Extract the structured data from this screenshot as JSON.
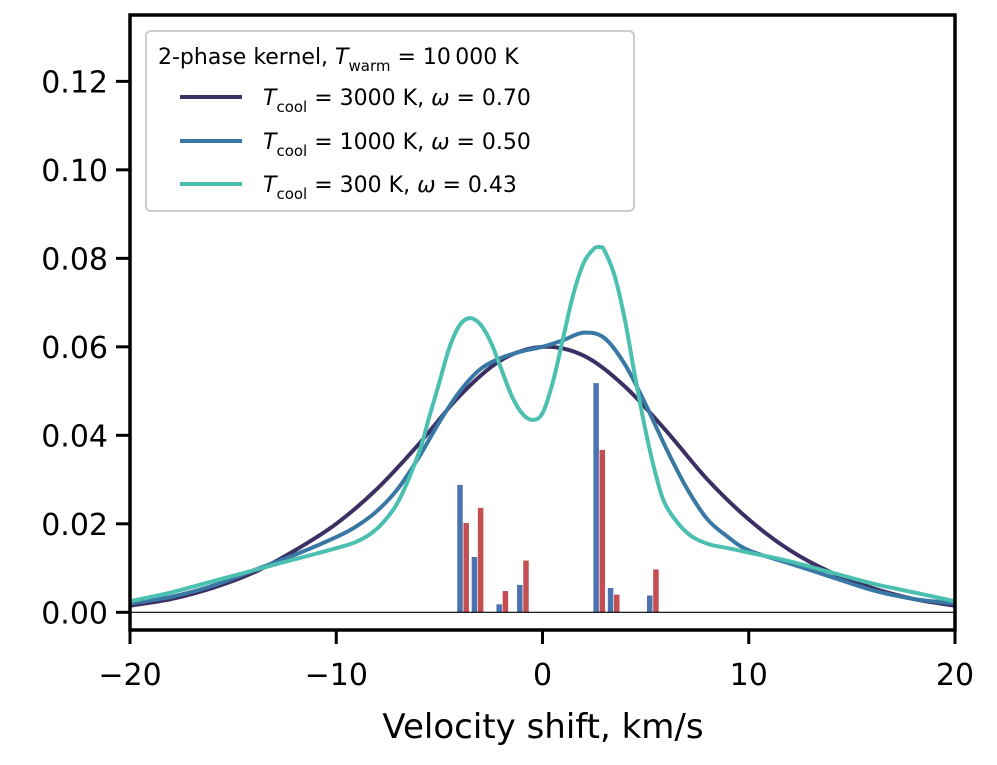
{
  "chart_data": {
    "type": "line",
    "xlabel": "Velocity shift, km/s",
    "ylabel": "",
    "xlim": [
      -20,
      20
    ],
    "ylim": [
      -0.004,
      0.135
    ],
    "x_ticks": [
      -20,
      -10,
      0,
      10,
      20
    ],
    "x_tick_labels": [
      "−20",
      "−10",
      "0",
      "10",
      "20"
    ],
    "y_ticks": [
      0.0,
      0.02,
      0.04,
      0.06,
      0.08,
      0.1,
      0.12
    ],
    "y_tick_labels": [
      "0.00",
      "0.02",
      "0.04",
      "0.06",
      "0.08",
      "0.10",
      "0.12"
    ],
    "grid": false,
    "legend": {
      "placement": "top-left",
      "title": {
        "prefix": "2-phase kernel, ",
        "var": "T",
        "sub": "warm",
        "rest": " = 10 000 K"
      },
      "entries": [
        {
          "var": "T",
          "sub": "cool",
          "rest": " = 3000 K, ",
          "omega": "ω",
          "omega_rest": " = 0.70"
        },
        {
          "var": "T",
          "sub": "cool",
          "rest": " = 1000 K, ",
          "omega": "ω",
          "omega_rest": " = 0.50"
        },
        {
          "var": "T",
          "sub": "cool",
          "rest": " = 300 K, ",
          "omega": "ω",
          "omega_rest": " = 0.43"
        }
      ]
    },
    "series": [
      {
        "name": "Tcool = 3000 K, ω = 0.70",
        "color": "#3b2f63",
        "x": [
          -20,
          -18,
          -16,
          -14,
          -12,
          -10,
          -8,
          -6,
          -4,
          -2,
          0,
          2,
          4,
          6,
          8,
          10,
          12,
          14,
          16,
          18,
          20
        ],
        "y": [
          0.0015,
          0.003,
          0.0055,
          0.009,
          0.014,
          0.02,
          0.028,
          0.038,
          0.049,
          0.057,
          0.06,
          0.058,
          0.051,
          0.041,
          0.03,
          0.021,
          0.014,
          0.009,
          0.0055,
          0.003,
          0.0015
        ]
      },
      {
        "name": "Tcool = 1000 K, ω = 0.50",
        "color": "#3978a5",
        "x": [
          -20,
          -18,
          -16,
          -14,
          -12,
          -10,
          -9,
          -8,
          -7,
          -6,
          -5,
          -4,
          -3,
          -2,
          -1,
          0,
          1,
          2,
          3,
          4,
          5,
          6,
          7,
          8,
          9,
          10,
          12,
          14,
          16,
          18,
          20
        ],
        "y": [
          0.002,
          0.0035,
          0.006,
          0.0095,
          0.013,
          0.017,
          0.0195,
          0.023,
          0.028,
          0.035,
          0.043,
          0.05,
          0.055,
          0.0575,
          0.059,
          0.06,
          0.0615,
          0.0632,
          0.062,
          0.056,
          0.047,
          0.037,
          0.028,
          0.021,
          0.017,
          0.014,
          0.011,
          0.008,
          0.005,
          0.003,
          0.002
        ]
      },
      {
        "name": "Tcool = 300 K, ω = 0.43",
        "color": "#4bbfb0",
        "x": [
          -20,
          -18,
          -16,
          -14,
          -12,
          -10,
          -9,
          -8,
          -7,
          -6,
          -5.5,
          -5,
          -4.5,
          -4,
          -3.5,
          -3,
          -2.5,
          -2,
          -1.5,
          -1,
          -0.5,
          0,
          0.5,
          1,
          1.5,
          2,
          2.5,
          2.8,
          3,
          3.5,
          4,
          4.5,
          5,
          5.5,
          6,
          7,
          8,
          9,
          10,
          12,
          14,
          16,
          18,
          20
        ],
        "y": [
          0.0025,
          0.0045,
          0.007,
          0.0095,
          0.012,
          0.0145,
          0.016,
          0.019,
          0.025,
          0.036,
          0.044,
          0.052,
          0.06,
          0.065,
          0.0665,
          0.065,
          0.061,
          0.055,
          0.049,
          0.045,
          0.0435,
          0.045,
          0.052,
          0.062,
          0.072,
          0.079,
          0.0822,
          0.0825,
          0.0818,
          0.076,
          0.066,
          0.053,
          0.041,
          0.031,
          0.024,
          0.018,
          0.0155,
          0.0145,
          0.0135,
          0.0115,
          0.009,
          0.0065,
          0.0045,
          0.0025
        ]
      }
    ],
    "bars": [
      {
        "name": "blue components",
        "color": "#4c72b0",
        "x": [
          -4.0,
          -3.3,
          -2.1,
          -1.1,
          2.6,
          3.3,
          5.2
        ],
        "y": [
          0.0288,
          0.0125,
          0.0018,
          0.0062,
          0.0518,
          0.0055,
          0.0038
        ]
      },
      {
        "name": "red components",
        "color": "#c44e52",
        "x": [
          -3.7,
          -3.0,
          -1.8,
          -0.8,
          2.9,
          3.6,
          5.5
        ],
        "y": [
          0.0202,
          0.0236,
          0.0048,
          0.0117,
          0.0367,
          0.004,
          0.0097
        ]
      }
    ]
  }
}
